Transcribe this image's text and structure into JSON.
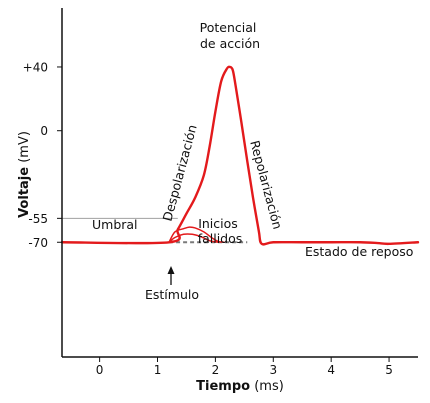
{
  "chart_data": {
    "type": "line",
    "xlabel_bold": "Tiempo",
    "xlabel_unit": "(ms)",
    "ylabel_bold": "Voltaje",
    "ylabel_unit": "(mV)",
    "xlim": [
      -0.65,
      5.5
    ],
    "ylim": [
      -142,
      77
    ],
    "x_ticks": [
      {
        "value": 0,
        "label": "0"
      },
      {
        "value": 1,
        "label": "1"
      },
      {
        "value": 2,
        "label": "2"
      },
      {
        "value": 3,
        "label": "3"
      },
      {
        "value": 4,
        "label": "4"
      },
      {
        "value": 5,
        "label": "5"
      }
    ],
    "y_ticks": [
      {
        "value": 40,
        "label": "+40"
      },
      {
        "value": 0,
        "label": "0"
      },
      {
        "value": -55,
        "label": "-55"
      },
      {
        "value": -70,
        "label": "-70"
      }
    ],
    "threshold": {
      "value": -55,
      "label": "Umbral",
      "x_end": 1.35
    },
    "resting_potential": {
      "value": -70,
      "label": "Estado de reposo"
    },
    "colors": {
      "trace": "#e31a1c",
      "threshold_line": "#a0a0a0",
      "rest_dash": "#7a7a7a",
      "axis": "#111111"
    },
    "series": [
      {
        "role": "action-potential",
        "x": [
          -0.65,
          1.2,
          1.35,
          1.5,
          1.65,
          1.8,
          1.9,
          2.0,
          2.1,
          2.2,
          2.25,
          2.3,
          2.35,
          2.45,
          2.55,
          2.65,
          2.75,
          2.8,
          3.0,
          3.5,
          4.0,
          4.5,
          4.8,
          5.0,
          5.5
        ],
        "y": [
          -70,
          -70,
          -62,
          -52,
          -42,
          -28,
          -10,
          12,
          31,
          39,
          40,
          38,
          28,
          5,
          -19,
          -42,
          -63,
          -71,
          -70,
          -70,
          -70,
          -70,
          -70.5,
          -71,
          -70
        ]
      },
      {
        "role": "failed-initiation-1",
        "x": [
          1.2,
          1.3,
          1.45,
          1.55,
          1.65,
          1.8,
          1.95,
          2.05,
          2.15
        ],
        "y": [
          -70,
          -63.5,
          -61.5,
          -60.5,
          -61,
          -63.5,
          -67.5,
          -69.5,
          -70
        ]
      },
      {
        "role": "failed-initiation-2",
        "x": [
          1.2,
          1.3,
          1.45,
          1.6,
          1.75,
          1.9,
          2.05
        ],
        "y": [
          -70,
          -67,
          -65,
          -65,
          -66.5,
          -69,
          -70
        ]
      }
    ],
    "rest_dash_x": [
      1.2,
      2.55
    ],
    "annotations": [
      {
        "name": "action-potential-label",
        "lines": [
          "Potencial",
          "de acción"
        ]
      },
      {
        "name": "depolarization-label",
        "text": "Despolarización"
      },
      {
        "name": "repolarization-label",
        "text": "Repolarización"
      },
      {
        "name": "failed-initiations-label",
        "lines": [
          "Inicios",
          "fallidos"
        ]
      },
      {
        "name": "stimulus-label",
        "text": "Estímulo"
      }
    ]
  }
}
